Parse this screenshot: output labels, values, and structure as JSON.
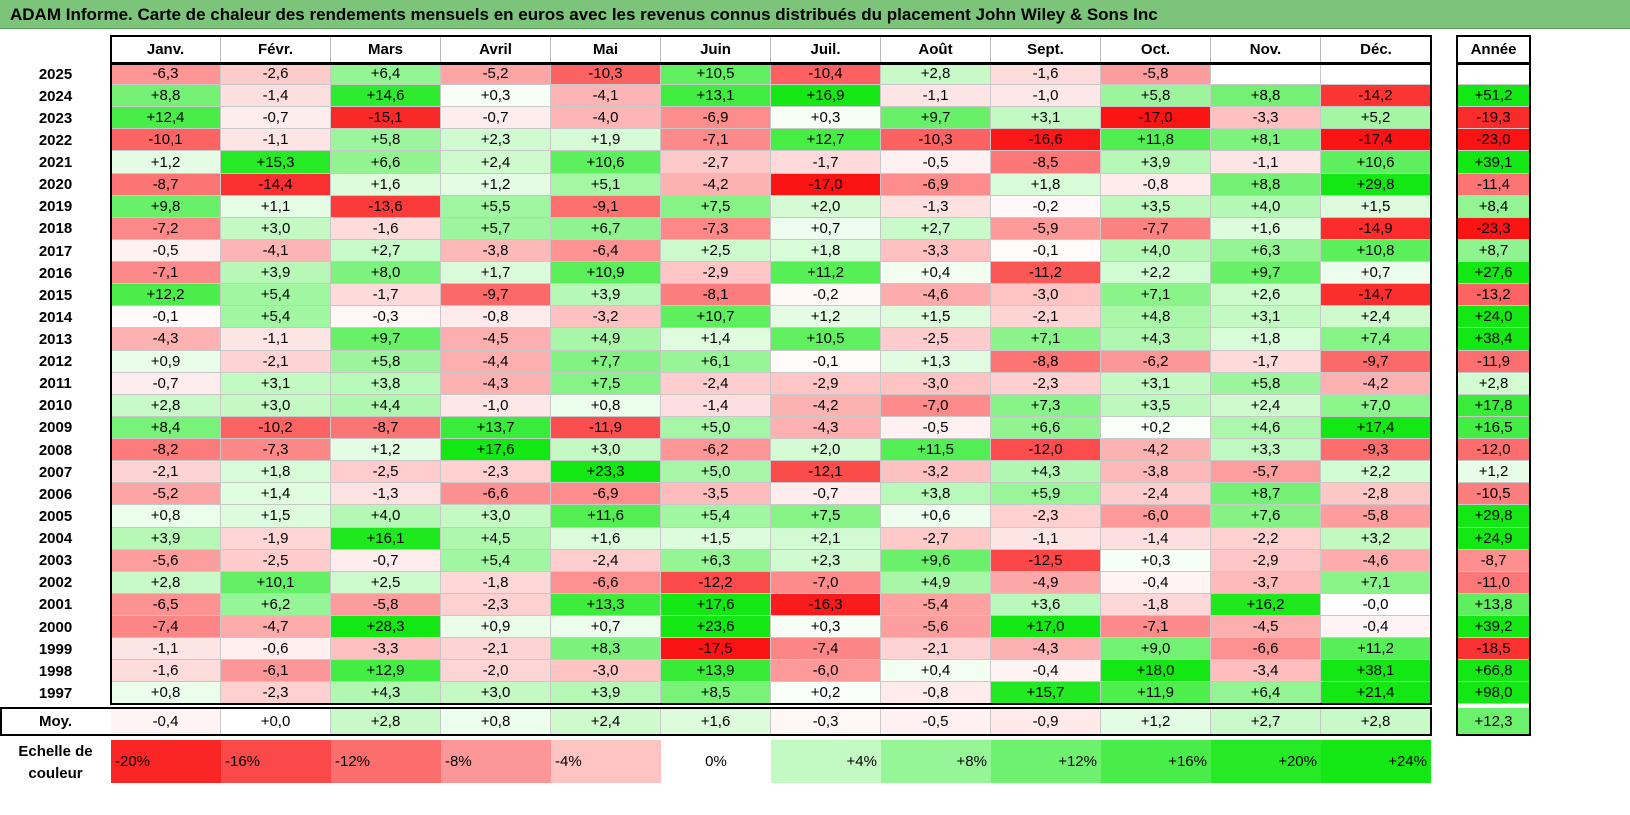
{
  "title": "ADAM Informe. Carte de chaleur des rendements mensuels en euros avec les revenus connus distribués du placement John Wiley & Sons Inc",
  "chart_data": {
    "type": "heatmap",
    "columns": [
      "Janv.",
      "Févr.",
      "Mars",
      "Avril",
      "Mai",
      "Juin",
      "Juil.",
      "Août",
      "Sept.",
      "Oct.",
      "Nov.",
      "Déc."
    ],
    "year_column": "Année",
    "rows": [
      {
        "year": "2025",
        "values": [
          "-6,3",
          "-2,6",
          "+6,4",
          "-5,2",
          "-10,3",
          "+10,5",
          "-10,4",
          "+2,8",
          "-1,6",
          "-5,8",
          "",
          ""
        ],
        "annual": ""
      },
      {
        "year": "2024",
        "values": [
          "+8,8",
          "-1,4",
          "+14,6",
          "+0,3",
          "-4,1",
          "+13,1",
          "+16,9",
          "-1,1",
          "-1,0",
          "+5,8",
          "+8,8",
          "-14,2"
        ],
        "annual": "+51,2"
      },
      {
        "year": "2023",
        "values": [
          "+12,4",
          "-0,7",
          "-15,1",
          "-0,7",
          "-4,0",
          "-6,9",
          "+0,3",
          "+9,7",
          "+3,1",
          "-17,0",
          "-3,3",
          "+5,2"
        ],
        "annual": "-19,3"
      },
      {
        "year": "2022",
        "values": [
          "-10,1",
          "-1,1",
          "+5,8",
          "+2,3",
          "+1,9",
          "-7,1",
          "+12,7",
          "-10,3",
          "-16,6",
          "+11,8",
          "+8,1",
          "-17,4"
        ],
        "annual": "-23,0"
      },
      {
        "year": "2021",
        "values": [
          "+1,2",
          "+15,3",
          "+6,6",
          "+2,4",
          "+10,6",
          "-2,7",
          "-1,7",
          "-0,5",
          "-8,5",
          "+3,9",
          "-1,1",
          "+10,6"
        ],
        "annual": "+39,1"
      },
      {
        "year": "2020",
        "values": [
          "-8,7",
          "-14,4",
          "+1,6",
          "+1,2",
          "+5,1",
          "-4,2",
          "-17,0",
          "-6,9",
          "+1,8",
          "-0,8",
          "+8,8",
          "+29,8"
        ],
        "annual": "-11,4"
      },
      {
        "year": "2019",
        "values": [
          "+9,8",
          "+1,1",
          "-13,6",
          "+5,5",
          "-9,1",
          "+7,5",
          "+2,0",
          "-1,3",
          "-0,2",
          "+3,5",
          "+4,0",
          "+1,5"
        ],
        "annual": "+8,4"
      },
      {
        "year": "2018",
        "values": [
          "-7,2",
          "+3,0",
          "-1,6",
          "+5,7",
          "+6,7",
          "-7,3",
          "+0,7",
          "+2,7",
          "-5,9",
          "-7,7",
          "+1,6",
          "-14,9"
        ],
        "annual": "-23,3"
      },
      {
        "year": "2017",
        "values": [
          "-0,5",
          "-4,1",
          "+2,7",
          "-3,8",
          "-6,4",
          "+2,5",
          "+1,8",
          "-3,3",
          "-0,1",
          "+4,0",
          "+6,3",
          "+10,8"
        ],
        "annual": "+8,7"
      },
      {
        "year": "2016",
        "values": [
          "-7,1",
          "+3,9",
          "+8,0",
          "+1,7",
          "+10,9",
          "-2,9",
          "+11,2",
          "+0,4",
          "-11,2",
          "+2,2",
          "+9,7",
          "+0,7"
        ],
        "annual": "+27,6"
      },
      {
        "year": "2015",
        "values": [
          "+12,2",
          "+5,4",
          "-1,7",
          "-9,7",
          "+3,9",
          "-8,1",
          "-0,2",
          "-4,6",
          "-3,0",
          "+7,1",
          "+2,6",
          "-14,7"
        ],
        "annual": "-13,2"
      },
      {
        "year": "2014",
        "values": [
          "-0,1",
          "+5,4",
          "-0,3",
          "-0,8",
          "-3,2",
          "+10,7",
          "+1,2",
          "+1,5",
          "-2,1",
          "+4,8",
          "+3,1",
          "+2,4"
        ],
        "annual": "+24,0"
      },
      {
        "year": "2013",
        "values": [
          "-4,3",
          "-1,1",
          "+9,7",
          "-4,5",
          "+4,9",
          "+1,4",
          "+10,5",
          "-2,5",
          "+7,1",
          "+4,3",
          "+1,8",
          "+7,4"
        ],
        "annual": "+38,4"
      },
      {
        "year": "2012",
        "values": [
          "+0,9",
          "-2,1",
          "+5,8",
          "-4,4",
          "+7,7",
          "+6,1",
          "-0,1",
          "+1,3",
          "-8,8",
          "-6,2",
          "-1,7",
          "-9,7"
        ],
        "annual": "-11,9"
      },
      {
        "year": "2011",
        "values": [
          "-0,7",
          "+3,1",
          "+3,8",
          "-4,3",
          "+7,5",
          "-2,4",
          "-2,9",
          "-3,0",
          "-2,3",
          "+3,1",
          "+5,8",
          "-4,2"
        ],
        "annual": "+2,8"
      },
      {
        "year": "2010",
        "values": [
          "+2,8",
          "+3,0",
          "+4,4",
          "-1,0",
          "+0,8",
          "-1,4",
          "-4,2",
          "-7,0",
          "+7,3",
          "+3,5",
          "+2,4",
          "+7,0"
        ],
        "annual": "+17,8"
      },
      {
        "year": "2009",
        "values": [
          "+8,4",
          "-10,2",
          "-8,7",
          "+13,7",
          "-11,9",
          "+5,0",
          "-4,3",
          "-0,5",
          "+6,6",
          "+0,2",
          "+4,6",
          "+17,4"
        ],
        "annual": "+16,5"
      },
      {
        "year": "2008",
        "values": [
          "-8,2",
          "-7,3",
          "+1,2",
          "+17,6",
          "+3,0",
          "-6,2",
          "+2,0",
          "+11,5",
          "-12,0",
          "-4,2",
          "+3,3",
          "-9,3"
        ],
        "annual": "-12,0"
      },
      {
        "year": "2007",
        "values": [
          "-2,1",
          "+1,8",
          "-2,5",
          "-2,3",
          "+23,3",
          "+5,0",
          "-12,1",
          "-3,2",
          "+4,3",
          "-3,8",
          "-5,7",
          "+2,2"
        ],
        "annual": "+1,2"
      },
      {
        "year": "2006",
        "values": [
          "-5,2",
          "+1,4",
          "-1,3",
          "-6,6",
          "-6,9",
          "-3,5",
          "-0,7",
          "+3,8",
          "+5,9",
          "-2,4",
          "+8,7",
          "-2,8"
        ],
        "annual": "-10,5"
      },
      {
        "year": "2005",
        "values": [
          "+0,8",
          "+1,5",
          "+4,0",
          "+3,0",
          "+11,6",
          "+5,4",
          "+7,5",
          "+0,6",
          "-2,3",
          "-6,0",
          "+7,6",
          "-5,8"
        ],
        "annual": "+29,8"
      },
      {
        "year": "2004",
        "values": [
          "+3,9",
          "-1,9",
          "+16,1",
          "+4,5",
          "+1,6",
          "+1,5",
          "+2,1",
          "-2,7",
          "-1,1",
          "-1,4",
          "-2,2",
          "+3,2"
        ],
        "annual": "+24,9"
      },
      {
        "year": "2003",
        "values": [
          "-5,6",
          "-2,5",
          "-0,7",
          "+5,4",
          "-2,4",
          "+6,3",
          "+2,3",
          "+9,6",
          "-12,5",
          "+0,3",
          "-2,9",
          "-4,6"
        ],
        "annual": "-8,7"
      },
      {
        "year": "2002",
        "values": [
          "+2,8",
          "+10,1",
          "+2,5",
          "-1,8",
          "-6,6",
          "-12,2",
          "-7,0",
          "+4,9",
          "-4,9",
          "-0,4",
          "-3,7",
          "+7,1"
        ],
        "annual": "-11,0"
      },
      {
        "year": "2001",
        "values": [
          "-6,5",
          "+6,2",
          "-5,8",
          "-2,3",
          "+13,3",
          "+17,6",
          "-16,3",
          "-5,4",
          "+3,6",
          "-1,8",
          "+16,2",
          "-0,0"
        ],
        "annual": "+13,8"
      },
      {
        "year": "2000",
        "values": [
          "-7,4",
          "-4,7",
          "+28,3",
          "+0,9",
          "+0,7",
          "+23,6",
          "+0,3",
          "-5,6",
          "+17,0",
          "-7,1",
          "-4,5",
          "-0,4"
        ],
        "annual": "+39,2"
      },
      {
        "year": "1999",
        "values": [
          "-1,1",
          "-0,6",
          "-3,3",
          "-2,1",
          "+8,3",
          "-17,5",
          "-7,4",
          "-2,1",
          "-4,3",
          "+9,0",
          "-6,6",
          "+11,2"
        ],
        "annual": "-18,5"
      },
      {
        "year": "1998",
        "values": [
          "-1,6",
          "-6,1",
          "+12,9",
          "-2,0",
          "-3,0",
          "+13,9",
          "-6,0",
          "+0,4",
          "-0,4",
          "+18,0",
          "-3,4",
          "+38,1"
        ],
        "annual": "+66,8"
      },
      {
        "year": "1997",
        "values": [
          "+0,8",
          "-2,3",
          "+4,3",
          "+3,0",
          "+3,9",
          "+8,5",
          "+0,2",
          "-0,8",
          "+15,7",
          "+11,9",
          "+6,4",
          "+21,4"
        ],
        "annual": "+98,0"
      }
    ],
    "average": {
      "label": "Moy.",
      "values": [
        "-0,4",
        "+0,0",
        "+2,8",
        "+0,8",
        "+2,4",
        "+1,6",
        "-0,3",
        "-0,5",
        "-0,9",
        "+1,2",
        "+2,7",
        "+2,8"
      ],
      "annual": "+12,3"
    },
    "legend": {
      "label": "Echelle de couleur",
      "steps": [
        "-20%",
        "-16%",
        "-12%",
        "-8%",
        "-4%",
        "0%",
        "+4%",
        "+8%",
        "+12%",
        "+16%",
        "+20%",
        "+24%"
      ]
    },
    "colors": {
      "title_bar": "#7dc47b",
      "negative_max": "#ff0000",
      "neutral": "#ffffff",
      "positive_max": "#00ee00"
    }
  }
}
